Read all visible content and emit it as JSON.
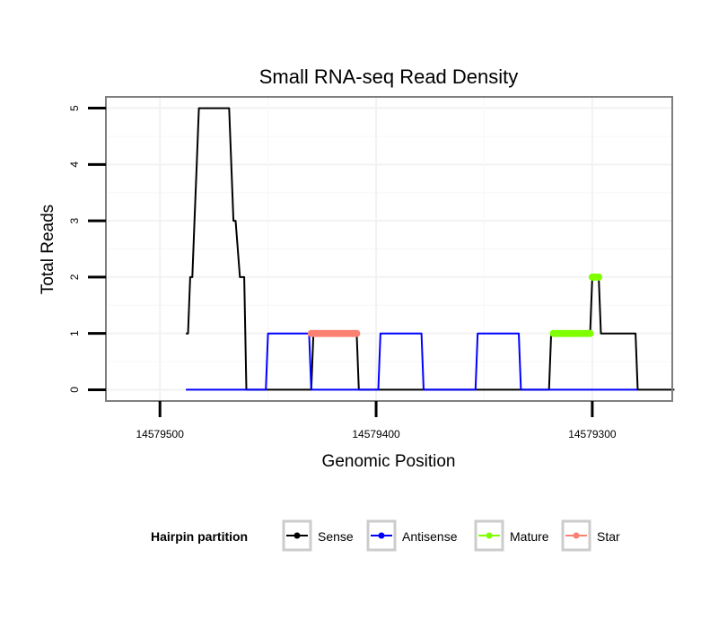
{
  "chart_data": {
    "type": "line",
    "title": "Small RNA-seq Read Density",
    "xlabel": "Genomic Position",
    "ylabel": "Total Reads",
    "xlim": [
      14579525,
      14579263
    ],
    "ylim": [
      -0.2,
      5.2
    ],
    "x_reversed": true,
    "x_ticks": [
      14579500,
      14579400,
      14579300
    ],
    "x_tick_labels": [
      "14579500",
      "14579400",
      "14579300"
    ],
    "y_ticks": [
      0,
      1,
      2,
      3,
      4,
      5
    ],
    "y_tick_labels": [
      "0",
      "1",
      "2",
      "3",
      "4",
      "5"
    ],
    "grid": true,
    "legend": {
      "title": "Hairpin partition",
      "position": "bottom",
      "entries": [
        {
          "name": "Sense",
          "color": "#000000"
        },
        {
          "name": "Antisense",
          "color": "#0000ff"
        },
        {
          "name": "Mature",
          "color": "#7fff00"
        },
        {
          "name": "Star",
          "color": "#fa8072"
        }
      ]
    },
    "series": [
      {
        "name": "Sense",
        "color": "#000000",
        "style": "line",
        "x": [
          14579488,
          14579487,
          14579486,
          14579485,
          14579484,
          14579483,
          14579482,
          14579468,
          14579467,
          14579466,
          14579465,
          14579463,
          14579461,
          14579460,
          14579430,
          14579429,
          14579409,
          14579408,
          14579320,
          14579319,
          14579318,
          14579301,
          14579300,
          14579297,
          14579296,
          14579280,
          14579279,
          14579262
        ],
        "y": [
          1,
          1,
          2,
          2,
          3,
          4,
          5,
          5,
          4,
          3,
          3,
          2,
          2,
          0,
          0,
          1,
          1,
          0,
          0,
          1,
          1,
          1,
          2,
          2,
          1,
          1,
          0,
          0
        ]
      },
      {
        "name": "Antisense",
        "color": "#0000ff",
        "style": "line",
        "x": [
          14579488,
          14579451,
          14579450,
          14579431,
          14579430,
          14579399,
          14579398,
          14579379,
          14579378,
          14579354,
          14579353,
          14579334,
          14579333,
          14579279
        ],
        "y": [
          0,
          0,
          1,
          1,
          0,
          0,
          1,
          1,
          0,
          0,
          1,
          1,
          0,
          0
        ]
      },
      {
        "name": "Mature",
        "color": "#7fff00",
        "style": "points",
        "x": [
          14579318,
          14579317,
          14579316,
          14579315,
          14579314,
          14579313,
          14579312,
          14579311,
          14579310,
          14579309,
          14579308,
          14579307,
          14579306,
          14579305,
          14579304,
          14579303,
          14579302,
          14579301,
          14579300,
          14579299,
          14579298,
          14579297
        ],
        "y": [
          1,
          1,
          1,
          1,
          1,
          1,
          1,
          1,
          1,
          1,
          1,
          1,
          1,
          1,
          1,
          1,
          1,
          1,
          2,
          2,
          2,
          2
        ]
      },
      {
        "name": "Star",
        "color": "#fa8072",
        "style": "points",
        "x": [
          14579430,
          14579429,
          14579428,
          14579427,
          14579426,
          14579425,
          14579424,
          14579423,
          14579422,
          14579421,
          14579420,
          14579419,
          14579418,
          14579417,
          14579416,
          14579415,
          14579414,
          14579413,
          14579412,
          14579411,
          14579410,
          14579409
        ],
        "y": [
          1,
          1,
          1,
          1,
          1,
          1,
          1,
          1,
          1,
          1,
          1,
          1,
          1,
          1,
          1,
          1,
          1,
          1,
          1,
          1,
          1,
          1
        ]
      }
    ]
  }
}
